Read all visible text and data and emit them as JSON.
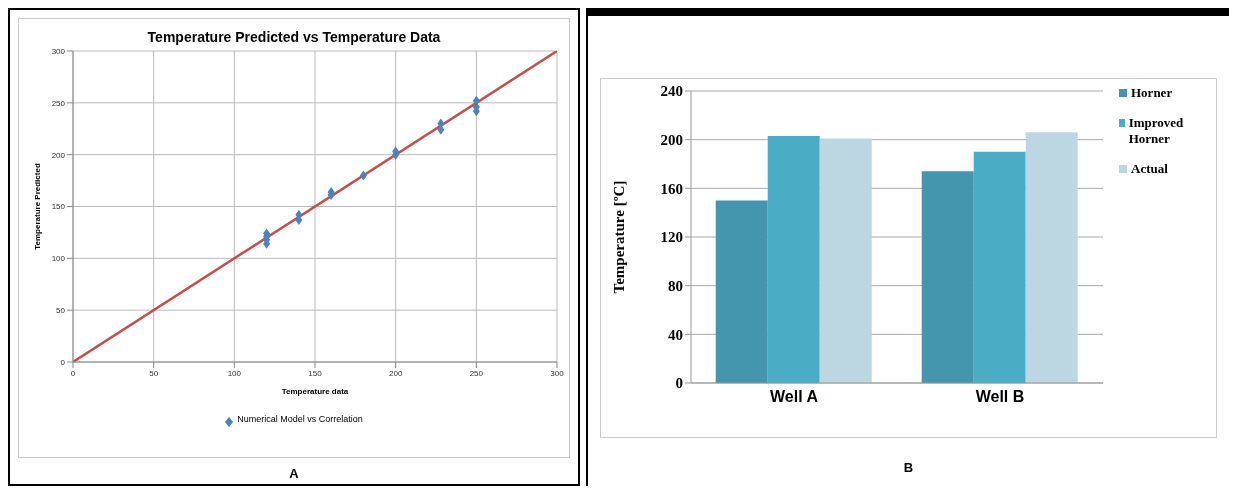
{
  "chart_data": [
    {
      "type": "scatter",
      "title": "Temperature Predicted vs Temperature Data",
      "xlabel": "Temperature data",
      "ylabel": "Temperature Predicted",
      "xlim": [
        0,
        300
      ],
      "xticks": [
        0,
        50,
        100,
        150,
        200,
        250,
        300
      ],
      "ylim": [
        0,
        300
      ],
      "yticks": [
        0,
        50,
        100,
        150,
        200,
        250,
        300
      ],
      "grid": true,
      "legend": "bottom",
      "annotations": [
        "A"
      ],
      "series": [
        {
          "name": "Numerical Model vs Correlation",
          "type": "scatter",
          "marker": "diamond",
          "color": "#4f81bd",
          "x": [
            120,
            120,
            120,
            120,
            140,
            140,
            160,
            160,
            180,
            200,
            200,
            228,
            228,
            250,
            250,
            250
          ],
          "values": [
            114,
            118,
            121,
            124,
            137,
            142,
            161,
            164,
            180,
            200,
            203,
            224,
            230,
            242,
            246,
            252
          ]
        },
        {
          "type": "line",
          "color": "#c0504d",
          "x": [
            0,
            300
          ],
          "values": [
            0,
            300
          ]
        }
      ]
    },
    {
      "type": "bar",
      "ylabel": "Temperature [ºC]",
      "categories": [
        "Well A",
        "Well B"
      ],
      "ylim": [
        0,
        240
      ],
      "yticks": [
        0,
        40,
        80,
        120,
        160,
        200,
        240
      ],
      "grid": "y",
      "legend": "right",
      "annotations": [
        "B"
      ],
      "series": [
        {
          "name": "Horner",
          "color": "#4396ad",
          "values": [
            150,
            174
          ]
        },
        {
          "name": "Improved Horner",
          "color": "#4bacc6",
          "values": [
            203,
            190
          ]
        },
        {
          "name": "Actual",
          "color": "#bcd7e2",
          "values": [
            201,
            206
          ]
        }
      ]
    }
  ]
}
